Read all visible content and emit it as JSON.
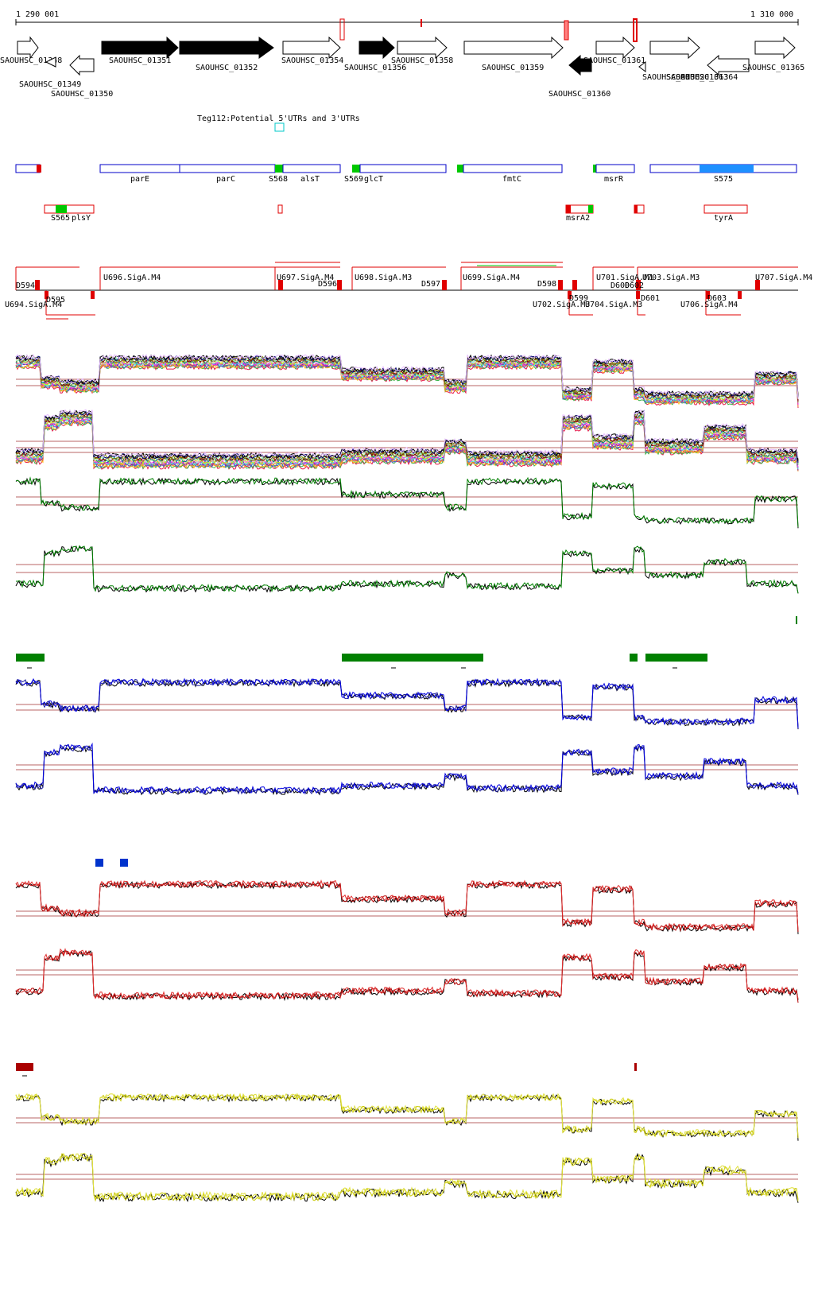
{
  "coord_start": "1 290 001",
  "coord_end": "1 310 000",
  "genes": [
    {
      "label": "SAOUHSC_01348",
      "strand": "+",
      "filled": false
    },
    {
      "label": "SAOUHSC_01349",
      "strand": "-",
      "filled": false
    },
    {
      "label": "SAOUHSC_01350",
      "strand": "-",
      "filled": false
    },
    {
      "label": "SAOUHSC_01351",
      "strand": "+",
      "filled": true
    },
    {
      "label": "SAOUHSC_01352",
      "strand": "+",
      "filled": true
    },
    {
      "label": "SAOUHSC_01354",
      "strand": "+",
      "filled": false
    },
    {
      "label": "SAOUHSC_01356",
      "strand": "+",
      "filled": true
    },
    {
      "label": "SAOUHSC_01358",
      "strand": "+",
      "filled": false
    },
    {
      "label": "SAOUHSC_01359",
      "strand": "+",
      "filled": false
    },
    {
      "label": "SAOUHSC_01360",
      "strand": "-",
      "filled": true
    },
    {
      "label": "SAOUHSC_01361",
      "strand": "+",
      "filled": false
    },
    {
      "label": "SAOUHSC_01362",
      "strand": "-",
      "filled": false
    },
    {
      "label": "SAOUHSC_01363",
      "strand": "+",
      "filled": false
    },
    {
      "label": "SAOUHSC_01364",
      "strand": "-",
      "filled": false
    },
    {
      "label": "SAOUHSC_01365",
      "strand": "+",
      "filled": false
    }
  ],
  "utr_label": "Teg112:Potential 5'UTRs and 3'UTRs",
  "operon_labels": [
    "parE",
    "parC",
    "S568",
    "alsT",
    "S569",
    "glcT",
    "fmtC",
    "msrR",
    "S575"
  ],
  "lower_labels": [
    "S565",
    "plsY",
    "msrA2",
    "tyrA"
  ],
  "segments_top": [
    "D594",
    "U696.SigA.M4",
    "U697.SigA.M4",
    "D596",
    "U698.SigA.M3",
    "D597",
    "U699.SigA.M4",
    "D598",
    "U701.SigA.M1",
    "D600",
    "D602",
    "U703.SigA.M3",
    "U707.SigA.M4"
  ],
  "segments_bottom": [
    "U694.SigA.M4",
    "D595",
    "D599",
    "U702.SigA.M3",
    "U704.SigA.M3",
    "D601",
    "U706.SigA.M4",
    "D603"
  ],
  "colors": {
    "gene_fill": "#000000",
    "operon_blue": "#0000c8",
    "marker_green": "#00c800",
    "marker_red": "#e00000",
    "segment_red": "#e00000",
    "track_green": "#008000",
    "track_blue": "#0000b4",
    "track_red": "#b40000",
    "track_yellow": "#c8c800",
    "block_green": "#008000",
    "block_blue": "#0033cc",
    "block_red": "#aa0000"
  }
}
